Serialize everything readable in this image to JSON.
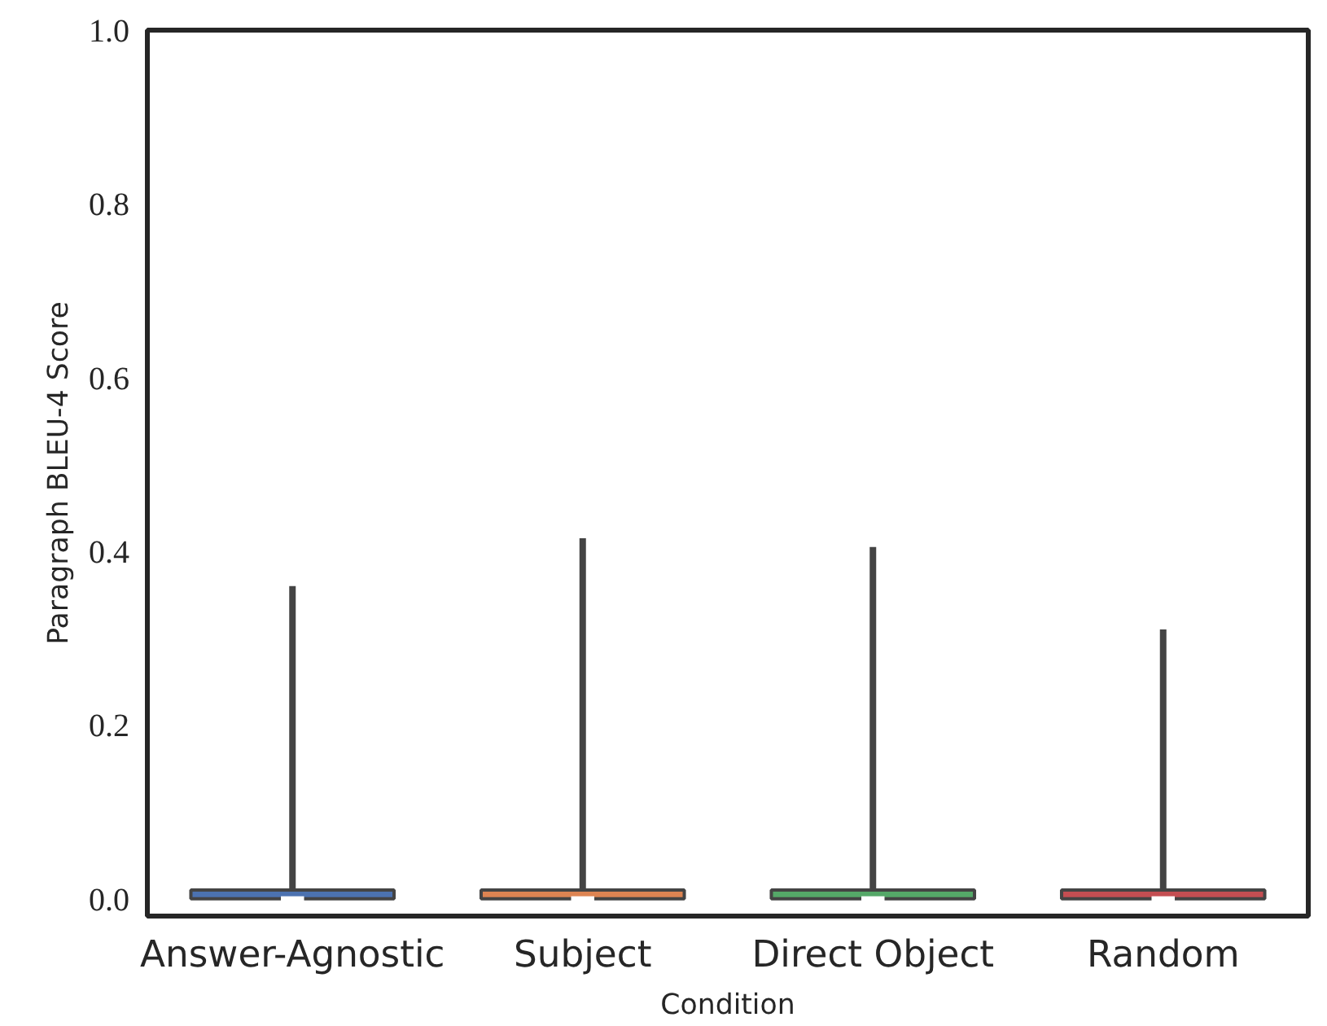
{
  "chart_data": {
    "type": "box",
    "xlabel": "Condition",
    "ylabel": "Paragraph BLEU-4 Score",
    "categories": [
      "Answer-Agnostic",
      "Subject",
      "Direct Object",
      "Random"
    ],
    "colors": [
      "#4c72b0",
      "#dd8452",
      "#55a868",
      "#c44e52"
    ],
    "boxes": [
      {
        "low": 0.0,
        "q1": 0.0,
        "median": 0.0,
        "q3": 0.01,
        "high": 0.36
      },
      {
        "low": 0.0,
        "q1": 0.0,
        "median": 0.0,
        "q3": 0.01,
        "high": 0.415
      },
      {
        "low": 0.0,
        "q1": 0.0,
        "median": 0.0,
        "q3": 0.01,
        "high": 0.405
      },
      {
        "low": 0.0,
        "q1": 0.0,
        "median": 0.0,
        "q3": 0.01,
        "high": 0.31
      }
    ],
    "ylim": [
      -0.02,
      1.0
    ],
    "yticks": [
      {
        "value": 0,
        "label": "0.0"
      },
      0.2,
      0.4,
      0.6,
      0.8,
      {
        "value": 1,
        "label": "1.0"
      }
    ],
    "grid": false
  }
}
